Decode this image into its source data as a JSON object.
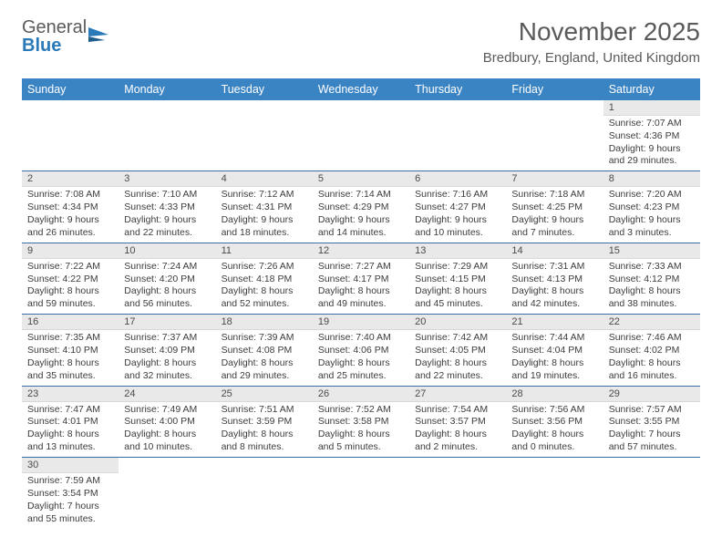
{
  "logo": {
    "word1": "General",
    "word2": "Blue"
  },
  "title": {
    "month": "November 2025",
    "location": "Bredbury, England, United Kingdom"
  },
  "days_of_week": [
    "Sunday",
    "Monday",
    "Tuesday",
    "Wednesday",
    "Thursday",
    "Friday",
    "Saturday"
  ],
  "colors": {
    "header_bg": "#3b84c4",
    "header_text": "#ffffff",
    "day_num_bg": "#e9e9e9",
    "row_border": "#3b6ea8",
    "logo_accent": "#2a7ab9",
    "text_muted": "#5a5a5a"
  },
  "grid": [
    [
      null,
      null,
      null,
      null,
      null,
      null,
      {
        "n": "1",
        "sunrise": "7:07 AM",
        "sunset": "4:36 PM",
        "daylight": "9 hours and 29 minutes."
      }
    ],
    [
      {
        "n": "2",
        "sunrise": "7:08 AM",
        "sunset": "4:34 PM",
        "daylight": "9 hours and 26 minutes."
      },
      {
        "n": "3",
        "sunrise": "7:10 AM",
        "sunset": "4:33 PM",
        "daylight": "9 hours and 22 minutes."
      },
      {
        "n": "4",
        "sunrise": "7:12 AM",
        "sunset": "4:31 PM",
        "daylight": "9 hours and 18 minutes."
      },
      {
        "n": "5",
        "sunrise": "7:14 AM",
        "sunset": "4:29 PM",
        "daylight": "9 hours and 14 minutes."
      },
      {
        "n": "6",
        "sunrise": "7:16 AM",
        "sunset": "4:27 PM",
        "daylight": "9 hours and 10 minutes."
      },
      {
        "n": "7",
        "sunrise": "7:18 AM",
        "sunset": "4:25 PM",
        "daylight": "9 hours and 7 minutes."
      },
      {
        "n": "8",
        "sunrise": "7:20 AM",
        "sunset": "4:23 PM",
        "daylight": "9 hours and 3 minutes."
      }
    ],
    [
      {
        "n": "9",
        "sunrise": "7:22 AM",
        "sunset": "4:22 PM",
        "daylight": "8 hours and 59 minutes."
      },
      {
        "n": "10",
        "sunrise": "7:24 AM",
        "sunset": "4:20 PM",
        "daylight": "8 hours and 56 minutes."
      },
      {
        "n": "11",
        "sunrise": "7:26 AM",
        "sunset": "4:18 PM",
        "daylight": "8 hours and 52 minutes."
      },
      {
        "n": "12",
        "sunrise": "7:27 AM",
        "sunset": "4:17 PM",
        "daylight": "8 hours and 49 minutes."
      },
      {
        "n": "13",
        "sunrise": "7:29 AM",
        "sunset": "4:15 PM",
        "daylight": "8 hours and 45 minutes."
      },
      {
        "n": "14",
        "sunrise": "7:31 AM",
        "sunset": "4:13 PM",
        "daylight": "8 hours and 42 minutes."
      },
      {
        "n": "15",
        "sunrise": "7:33 AM",
        "sunset": "4:12 PM",
        "daylight": "8 hours and 38 minutes."
      }
    ],
    [
      {
        "n": "16",
        "sunrise": "7:35 AM",
        "sunset": "4:10 PM",
        "daylight": "8 hours and 35 minutes."
      },
      {
        "n": "17",
        "sunrise": "7:37 AM",
        "sunset": "4:09 PM",
        "daylight": "8 hours and 32 minutes."
      },
      {
        "n": "18",
        "sunrise": "7:39 AM",
        "sunset": "4:08 PM",
        "daylight": "8 hours and 29 minutes."
      },
      {
        "n": "19",
        "sunrise": "7:40 AM",
        "sunset": "4:06 PM",
        "daylight": "8 hours and 25 minutes."
      },
      {
        "n": "20",
        "sunrise": "7:42 AM",
        "sunset": "4:05 PM",
        "daylight": "8 hours and 22 minutes."
      },
      {
        "n": "21",
        "sunrise": "7:44 AM",
        "sunset": "4:04 PM",
        "daylight": "8 hours and 19 minutes."
      },
      {
        "n": "22",
        "sunrise": "7:46 AM",
        "sunset": "4:02 PM",
        "daylight": "8 hours and 16 minutes."
      }
    ],
    [
      {
        "n": "23",
        "sunrise": "7:47 AM",
        "sunset": "4:01 PM",
        "daylight": "8 hours and 13 minutes."
      },
      {
        "n": "24",
        "sunrise": "7:49 AM",
        "sunset": "4:00 PM",
        "daylight": "8 hours and 10 minutes."
      },
      {
        "n": "25",
        "sunrise": "7:51 AM",
        "sunset": "3:59 PM",
        "daylight": "8 hours and 8 minutes."
      },
      {
        "n": "26",
        "sunrise": "7:52 AM",
        "sunset": "3:58 PM",
        "daylight": "8 hours and 5 minutes."
      },
      {
        "n": "27",
        "sunrise": "7:54 AM",
        "sunset": "3:57 PM",
        "daylight": "8 hours and 2 minutes."
      },
      {
        "n": "28",
        "sunrise": "7:56 AM",
        "sunset": "3:56 PM",
        "daylight": "8 hours and 0 minutes."
      },
      {
        "n": "29",
        "sunrise": "7:57 AM",
        "sunset": "3:55 PM",
        "daylight": "7 hours and 57 minutes."
      }
    ],
    [
      {
        "n": "30",
        "sunrise": "7:59 AM",
        "sunset": "3:54 PM",
        "daylight": "7 hours and 55 minutes."
      },
      null,
      null,
      null,
      null,
      null,
      null
    ]
  ],
  "labels": {
    "sunrise": "Sunrise: ",
    "sunset": "Sunset: ",
    "daylight": "Daylight: "
  }
}
